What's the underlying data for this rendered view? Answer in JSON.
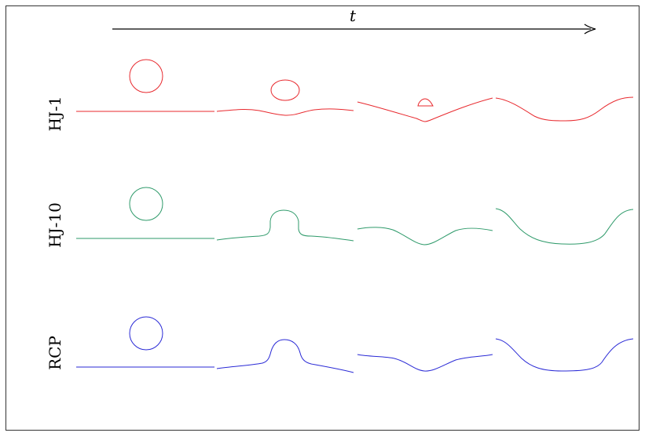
{
  "figure": {
    "time_axis_label": "t",
    "rows": [
      {
        "label": "HJ-1",
        "color": "#e8292e"
      },
      {
        "label": "HJ-10",
        "color": "#2e9a6a"
      },
      {
        "label": "RCP",
        "color": "#2a2ad6"
      }
    ],
    "frame_color": "#000000"
  }
}
